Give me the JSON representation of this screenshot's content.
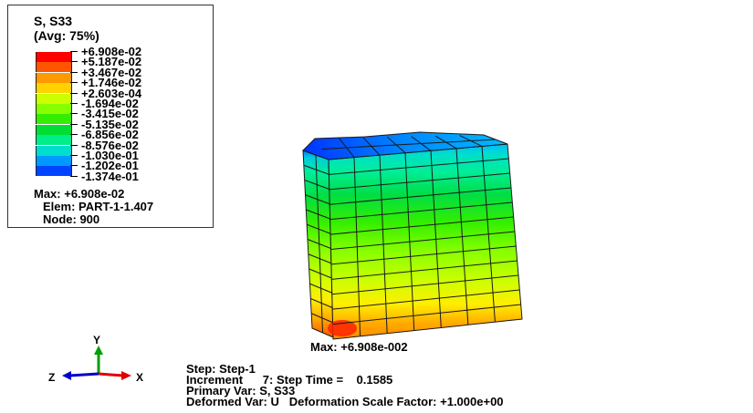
{
  "legend": {
    "title_line1": "S, S33",
    "title_line2": "(Avg: 75%)",
    "levels": [
      {
        "label": "+6.908e-02",
        "color": "#ff0000"
      },
      {
        "label": "+5.187e-02",
        "color": "#ff5500"
      },
      {
        "label": "+3.467e-02",
        "color": "#ff9900"
      },
      {
        "label": "+1.746e-02",
        "color": "#ffd200"
      },
      {
        "label": "+2.603e-04",
        "color": "#ccff00"
      },
      {
        "label": "-1.694e-02",
        "color": "#88ff00"
      },
      {
        "label": "-3.415e-02",
        "color": "#33ee00"
      },
      {
        "label": "-5.135e-02",
        "color": "#00dd33"
      },
      {
        "label": "-6.856e-02",
        "color": "#00ee88"
      },
      {
        "label": "-8.576e-02",
        "color": "#00ddcc"
      },
      {
        "label": "-1.030e-01",
        "color": "#0099ff"
      },
      {
        "label": "-1.202e-01",
        "color": "#0044ff"
      },
      {
        "label": "-1.374e-01",
        "color": ""
      }
    ],
    "max_line": "Max: +6.908e-02",
    "elem_line": "Elem: PART-1-1.407",
    "node_line": "Node: 900"
  },
  "model": {
    "max_label": "Max: +6.908e-002"
  },
  "triad": {
    "y_label": "Y",
    "x_label": "X",
    "z_label": "Z",
    "y_color": "#00a000",
    "x_color": "#e00000",
    "z_color": "#0000cc"
  },
  "status": {
    "step_line": "Step: Step-1",
    "increment_line": "Increment      7: Step Time =    0.1585",
    "primary_line": "Primary Var: S, S33",
    "deformed_line": "Deformed Var: U   Deformation Scale Factor: +1.000e+00"
  }
}
